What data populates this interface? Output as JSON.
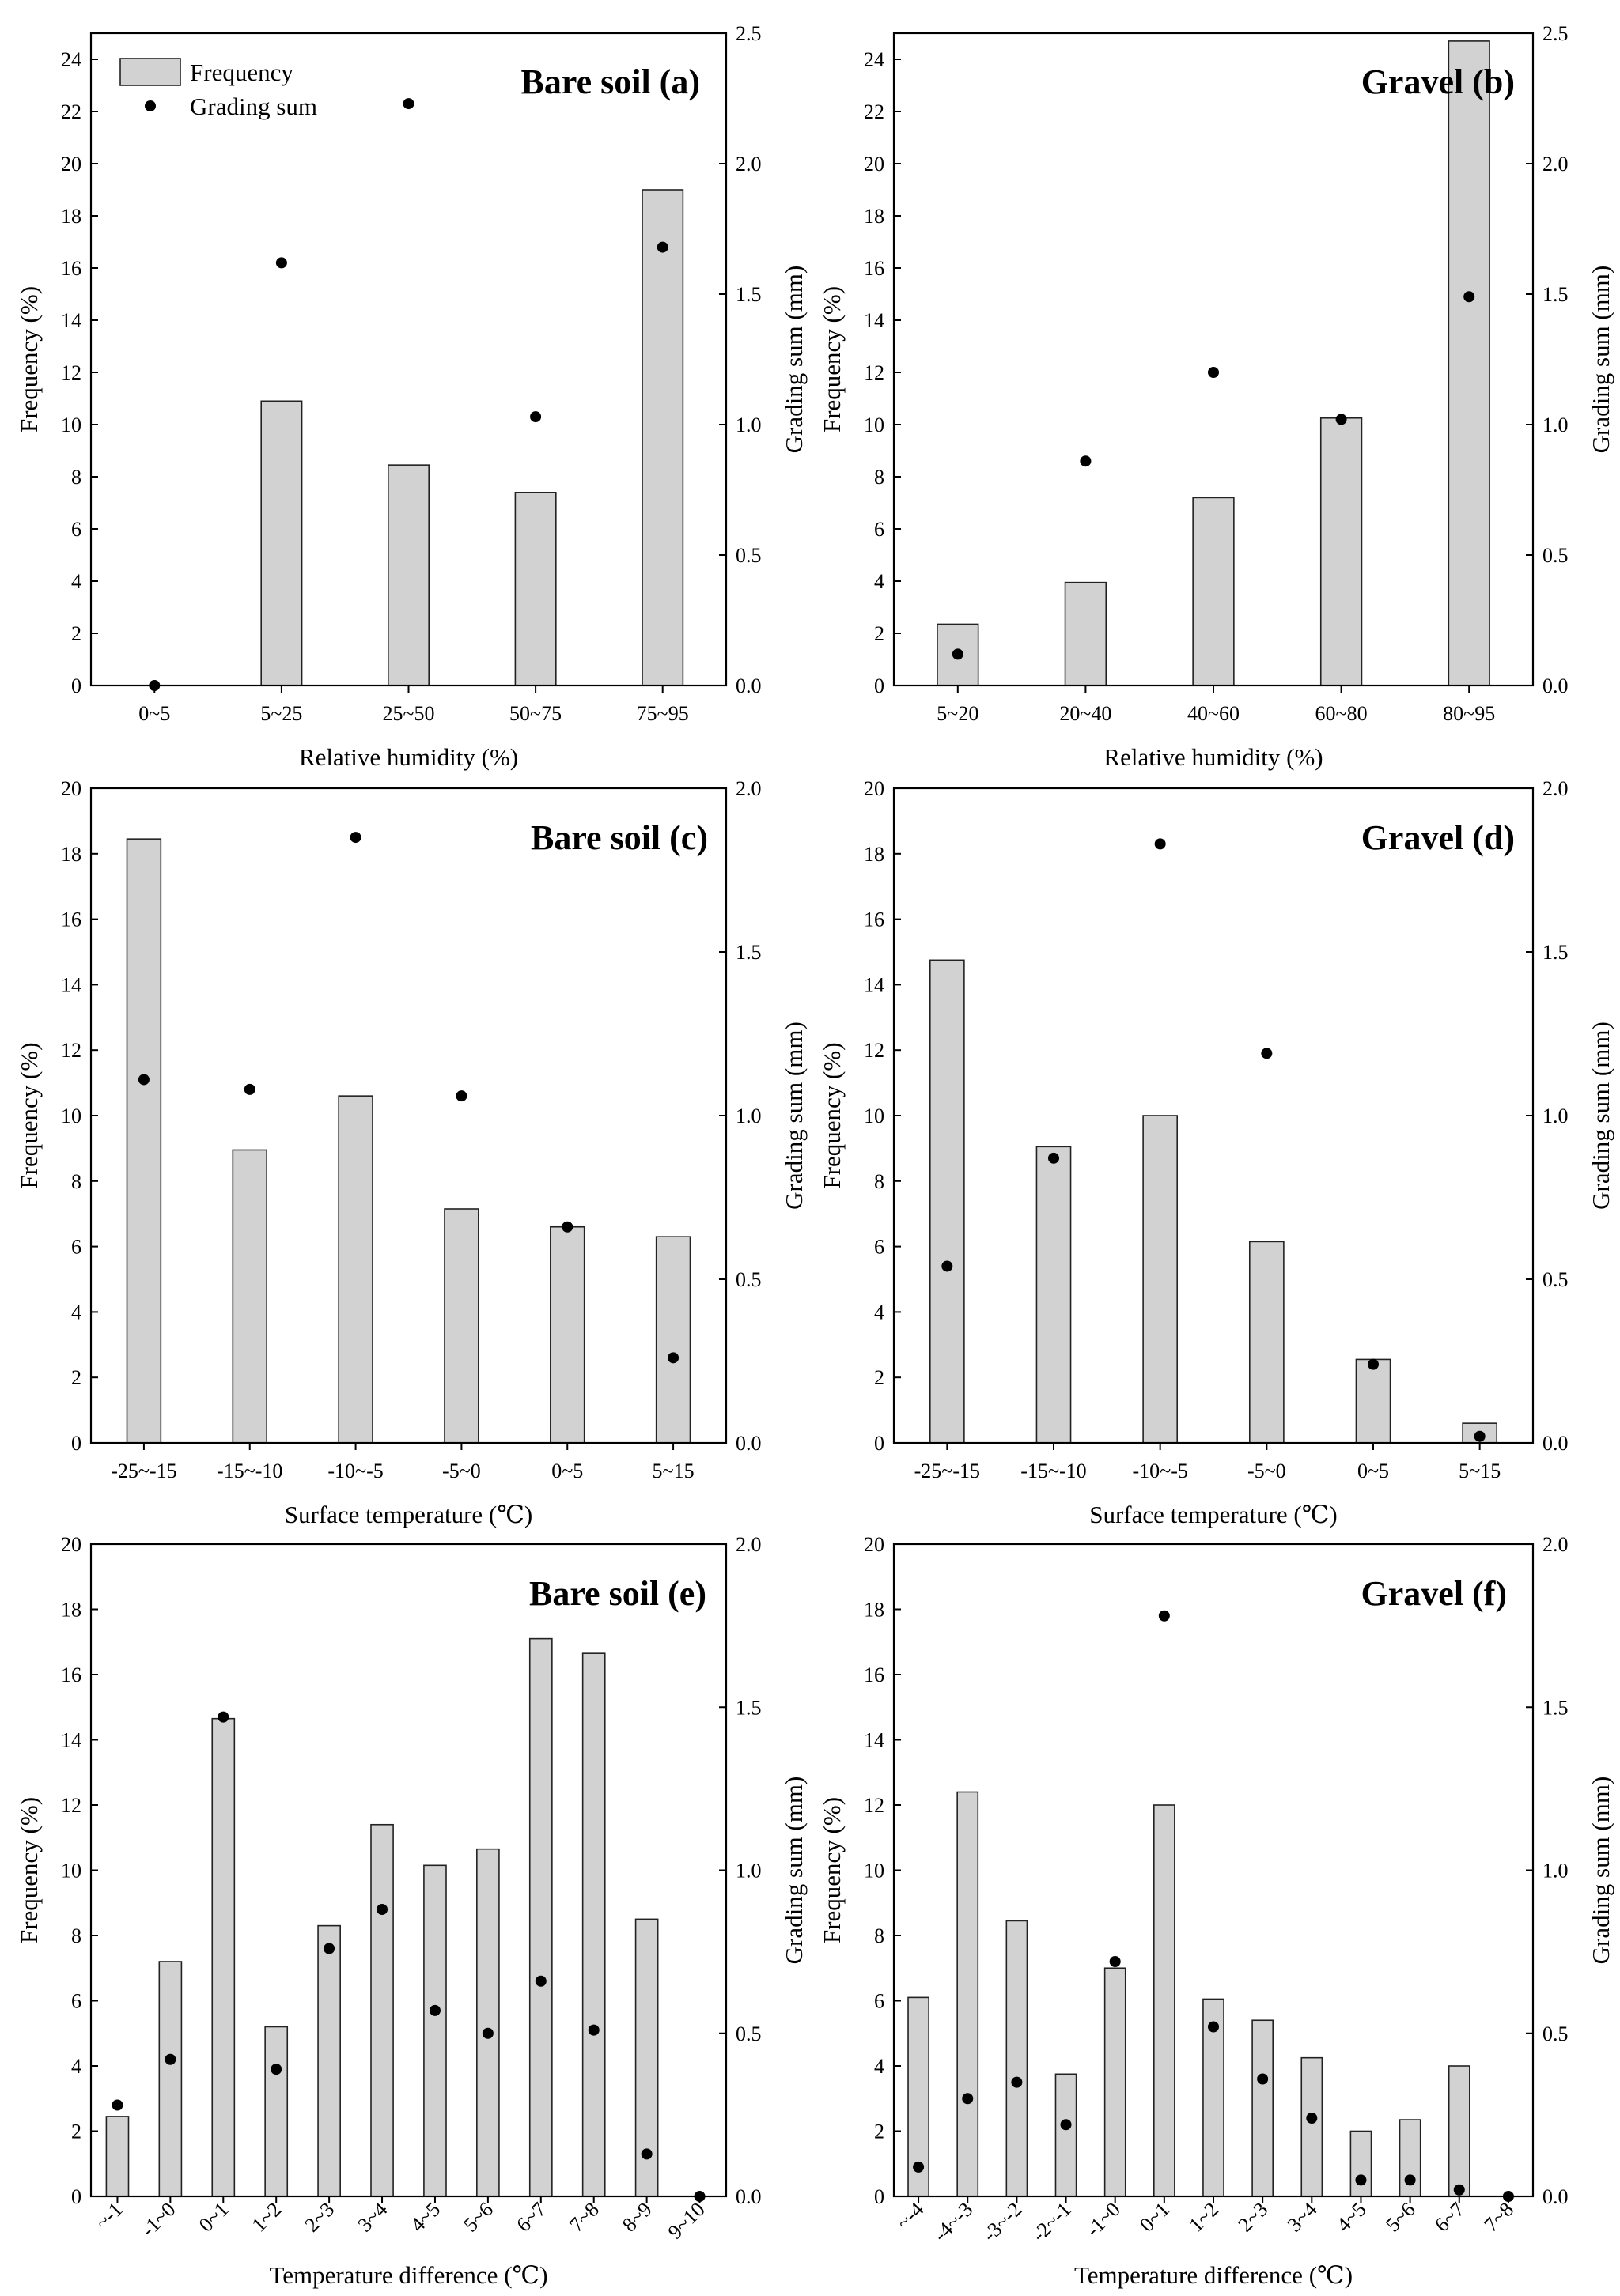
{
  "chart_data": [
    {
      "type": "bar",
      "title": "Bare soil (a)",
      "xlabel": "Relative humidity (%)",
      "ylabel": "Frequency (%)",
      "y2label": "Grading sum (mm)",
      "ylim": [
        0,
        25
      ],
      "yticks": [
        0,
        2,
        4,
        6,
        8,
        10,
        12,
        14,
        16,
        18,
        20,
        22,
        24
      ],
      "y2lim": [
        0,
        2.5
      ],
      "y2ticks": [
        "0.0",
        "0.5",
        "1.0",
        "1.5",
        "2.0",
        "2.5"
      ],
      "legend": {
        "position": "top-left",
        "entries": [
          "Frequency",
          "Grading sum"
        ]
      },
      "categories": [
        "0~5",
        "5~25",
        "25~50",
        "50~75",
        "75~95"
      ],
      "series": [
        {
          "name": "Frequency",
          "axis": "left",
          "kind": "bar",
          "values": [
            0,
            10.9,
            8.45,
            7.4,
            19.0
          ]
        },
        {
          "name": "Grading sum",
          "axis": "right",
          "kind": "scatter",
          "values": [
            0.0,
            1.62,
            2.23,
            1.03,
            1.68
          ]
        }
      ]
    },
    {
      "type": "bar",
      "title": "Gravel (b)",
      "xlabel": "Relative humidity (%)",
      "ylabel": "Frequency (%)",
      "y2label": "Grading sum (mm)",
      "ylim": [
        0,
        25
      ],
      "yticks": [
        0,
        2,
        4,
        6,
        8,
        10,
        12,
        14,
        16,
        18,
        20,
        22,
        24
      ],
      "y2lim": [
        0,
        2.5
      ],
      "y2ticks": [
        "0.0",
        "0.5",
        "1.0",
        "1.5",
        "2.0",
        "2.5"
      ],
      "categories": [
        "5~20",
        "20~40",
        "40~60",
        "60~80",
        "80~95"
      ],
      "series": [
        {
          "name": "Frequency",
          "axis": "left",
          "kind": "bar",
          "values": [
            2.35,
            3.95,
            7.2,
            10.25,
            24.7
          ]
        },
        {
          "name": "Grading sum",
          "axis": "right",
          "kind": "scatter",
          "values": [
            0.12,
            0.86,
            1.2,
            1.02,
            1.49
          ]
        }
      ]
    },
    {
      "type": "bar",
      "title": "Bare soil (c)",
      "xlabel": "Surface temperature (℃)",
      "ylabel": "Frequency (%)",
      "y2label": "Grading sum (mm)",
      "ylim": [
        0,
        20
      ],
      "yticks": [
        0,
        2,
        4,
        6,
        8,
        10,
        12,
        14,
        16,
        18,
        20
      ],
      "y2lim": [
        0,
        2.0
      ],
      "y2ticks": [
        "0.0",
        "0.5",
        "1.0",
        "1.5",
        "2.0"
      ],
      "categories": [
        "-25~-15",
        "-15~-10",
        "-10~-5",
        "-5~0",
        "0~5",
        "5~15"
      ],
      "series": [
        {
          "name": "Frequency",
          "axis": "left",
          "kind": "bar",
          "values": [
            18.45,
            8.95,
            10.6,
            7.15,
            6.6,
            6.3
          ]
        },
        {
          "name": "Grading sum",
          "axis": "right",
          "kind": "scatter",
          "values": [
            1.11,
            1.08,
            1.85,
            1.06,
            0.66,
            0.26
          ]
        }
      ]
    },
    {
      "type": "bar",
      "title": "Gravel (d)",
      "xlabel": "Surface temperature (℃)",
      "ylabel": "Frequency (%)",
      "y2label": "Grading sum (mm)",
      "ylim": [
        0,
        20
      ],
      "yticks": [
        0,
        2,
        4,
        6,
        8,
        10,
        12,
        14,
        16,
        18,
        20
      ],
      "y2lim": [
        0,
        2.0
      ],
      "y2ticks": [
        "0.0",
        "0.5",
        "1.0",
        "1.5",
        "2.0"
      ],
      "categories": [
        "-25~-15",
        "-15~-10",
        "-10~-5",
        "-5~0",
        "0~5",
        "5~15"
      ],
      "series": [
        {
          "name": "Frequency",
          "axis": "left",
          "kind": "bar",
          "values": [
            14.75,
            9.05,
            10.0,
            6.15,
            2.55,
            0.6
          ]
        },
        {
          "name": "Grading sum",
          "axis": "right",
          "kind": "scatter",
          "values": [
            0.54,
            0.87,
            1.83,
            1.19,
            0.24,
            0.02
          ]
        }
      ]
    },
    {
      "type": "bar",
      "title": "Bare soil (e)",
      "xlabel": "Temperature  difference (℃)",
      "ylabel": "Frequency (%)",
      "y2label": "Grading sum (mm)",
      "ylim": [
        0,
        20
      ],
      "yticks": [
        0,
        2,
        4,
        6,
        8,
        10,
        12,
        14,
        16,
        18,
        20
      ],
      "y2lim": [
        0,
        2.0
      ],
      "y2ticks": [
        "0.0",
        "0.5",
        "1.0",
        "1.5",
        "2.0"
      ],
      "categories": [
        "~-1",
        "-1~0",
        "0~1",
        "1~2",
        "2~3",
        "3~4",
        "4~5",
        "5~6",
        "6~7",
        "7~8",
        "8~9",
        "9~10"
      ],
      "series": [
        {
          "name": "Frequency",
          "axis": "left",
          "kind": "bar",
          "values": [
            2.45,
            7.2,
            14.65,
            5.2,
            8.3,
            11.4,
            10.15,
            10.65,
            17.1,
            16.65,
            8.5,
            0
          ]
        },
        {
          "name": "Grading sum",
          "axis": "right",
          "kind": "scatter",
          "values": [
            0.28,
            0.42,
            1.47,
            0.39,
            0.76,
            0.88,
            0.57,
            0.5,
            0.66,
            0.51,
            0.13,
            0.0
          ]
        }
      ]
    },
    {
      "type": "bar",
      "title": "Gravel (f)",
      "xlabel": "Temperature  difference (℃)",
      "ylabel": "Frequency (%)",
      "y2label": "Grading sum (mm)",
      "ylim": [
        0,
        20
      ],
      "yticks": [
        0,
        2,
        4,
        6,
        8,
        10,
        12,
        14,
        16,
        18,
        20
      ],
      "y2lim": [
        0,
        2.0
      ],
      "y2ticks": [
        "0.0",
        "0.5",
        "1.0",
        "1.5",
        "2.0"
      ],
      "categories": [
        "~-4",
        "-4~-3",
        "-3~-2",
        "-2~-1",
        "-1~0",
        "0~1",
        "1~2",
        "2~3",
        "3~4",
        "4~5",
        "5~6",
        "6~7",
        "7~8"
      ],
      "series": [
        {
          "name": "Frequency",
          "axis": "left",
          "kind": "bar",
          "values": [
            6.1,
            12.4,
            8.45,
            3.75,
            7.0,
            12.0,
            6.05,
            5.4,
            4.25,
            2.0,
            2.35,
            4.0,
            0
          ]
        },
        {
          "name": "Grading sum",
          "axis": "right",
          "kind": "scatter",
          "values": [
            0.09,
            0.3,
            0.35,
            0.22,
            0.72,
            1.78,
            0.52,
            0.36,
            0.24,
            0.05,
            0.05,
            0.02,
            0.0
          ]
        }
      ]
    }
  ]
}
